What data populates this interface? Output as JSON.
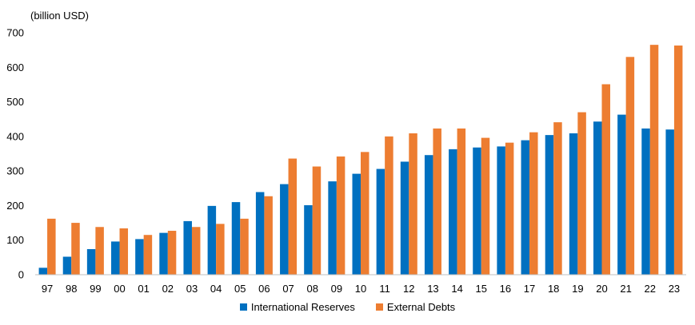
{
  "chart_data": {
    "type": "bar",
    "ylabel": "(billion USD)",
    "ylim": [
      0,
      700
    ],
    "yticks": [
      0,
      100,
      200,
      300,
      400,
      500,
      600,
      700
    ],
    "grid": false,
    "legend_position": "bottom",
    "categories": [
      "97",
      "98",
      "99",
      "00",
      "01",
      "02",
      "03",
      "04",
      "05",
      "06",
      "07",
      "08",
      "09",
      "10",
      "11",
      "12",
      "13",
      "14",
      "15",
      "16",
      "17",
      "18",
      "19",
      "20",
      "21",
      "22",
      "23"
    ],
    "series": [
      {
        "name": "International Reserves",
        "color": "#0070c0",
        "values": [
          20,
          52,
          74,
          96,
          103,
          121,
          155,
          199,
          210,
          239,
          262,
          201,
          270,
          292,
          306,
          327,
          346,
          363,
          368,
          371,
          389,
          404,
          409,
          443,
          463,
          423,
          420
        ]
      },
      {
        "name": "External Debts",
        "color": "#ed7d31",
        "values": [
          162,
          150,
          138,
          134,
          115,
          127,
          138,
          147,
          162,
          227,
          336,
          313,
          342,
          355,
          400,
          409,
          423,
          423,
          396,
          382,
          412,
          441,
          470,
          551,
          630,
          665,
          663
        ]
      }
    ]
  }
}
